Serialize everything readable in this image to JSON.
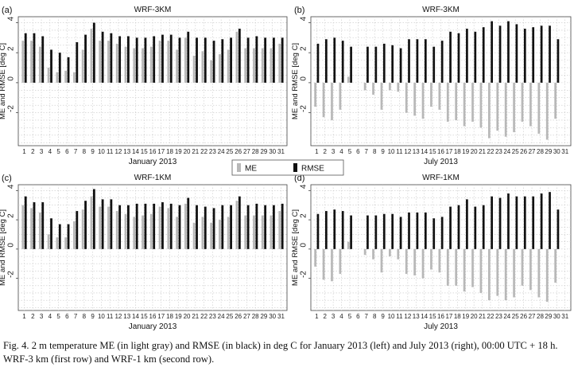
{
  "legend": {
    "me_label": "ME",
    "rmse_label": "RMSE",
    "me_color": "#b8b8b8",
    "rmse_color": "#111111"
  },
  "caption": "Fig. 4. 2 m temperature ME (in light gray) and RMSE (in black) in deg C for January 2013 (left) and July 2013 (right), 00:00 UTC + 18 h. WRF-3 km (first row) and WRF-1 km (second row).",
  "chart_data": [
    {
      "panel": "(a)",
      "type": "bar",
      "title": "WRF-3KM",
      "xlabel": "January 2013",
      "ylabel": "ME and RMSE [deg C]",
      "ylim": [
        -4.2,
        4.4
      ],
      "yticks": [
        -2,
        0,
        2,
        4
      ],
      "grid": true,
      "categories": [
        "1",
        "2",
        "3",
        "4",
        "5",
        "6",
        "7",
        "8",
        "9",
        "10",
        "11",
        "12",
        "13",
        "14",
        "15",
        "16",
        "17",
        "18",
        "19",
        "20",
        "21",
        "22",
        "23",
        "24",
        "25",
        "26",
        "27",
        "28",
        "29",
        "30",
        "31"
      ],
      "series": [
        {
          "name": "ME",
          "values": [
            2.8,
            2.8,
            2.4,
            1.0,
            0.7,
            0.8,
            0.7,
            2.2,
            3.6,
            2.8,
            2.8,
            2.6,
            2.4,
            2.3,
            2.3,
            2.4,
            2.8,
            2.8,
            2.2,
            3.0,
            1.8,
            2.1,
            1.5,
            1.9,
            2.2,
            3.4,
            2.3,
            2.3,
            2.3,
            2.3,
            2.6
          ]
        },
        {
          "name": "RMSE",
          "values": [
            3.3,
            3.3,
            3.1,
            2.2,
            2.0,
            1.7,
            2.7,
            3.2,
            4.0,
            3.4,
            3.3,
            3.1,
            3.1,
            3.0,
            3.0,
            3.1,
            3.2,
            3.2,
            3.0,
            3.4,
            3.0,
            3.0,
            2.8,
            2.9,
            3.0,
            3.6,
            3.0,
            3.1,
            3.0,
            3.0,
            3.0
          ]
        }
      ]
    },
    {
      "panel": "(b)",
      "type": "bar",
      "title": "WRF-3KM",
      "xlabel": "July 2013",
      "ylabel": "ME and RMSE [deg C]",
      "ylim": [
        -4.2,
        4.4
      ],
      "yticks": [
        -2,
        0,
        2,
        4
      ],
      "grid": true,
      "categories": [
        "1",
        "2",
        "3",
        "4",
        "5",
        "6",
        "7",
        "8",
        "9",
        "10",
        "11",
        "12",
        "13",
        "14",
        "15",
        "16",
        "17",
        "18",
        "19",
        "20",
        "21",
        "22",
        "23",
        "24",
        "25",
        "26",
        "27",
        "28",
        "29",
        "30",
        "31"
      ],
      "series": [
        {
          "name": "ME",
          "values": [
            -1.6,
            -2.3,
            -2.5,
            -1.8,
            0.4,
            null,
            -0.5,
            -0.8,
            -1.8,
            -0.5,
            -0.6,
            -2.0,
            -2.2,
            -2.4,
            -1.6,
            -1.8,
            -2.6,
            -2.5,
            -2.9,
            -2.6,
            -3.0,
            -3.7,
            -3.2,
            -3.6,
            -3.3,
            -2.6,
            -2.9,
            -3.4,
            -3.8,
            -2.4,
            null
          ]
        },
        {
          "name": "RMSE",
          "values": [
            2.6,
            2.9,
            3.0,
            2.8,
            2.4,
            null,
            2.4,
            2.4,
            2.6,
            2.5,
            2.3,
            2.9,
            2.9,
            2.9,
            2.4,
            2.8,
            3.4,
            3.3,
            3.6,
            3.4,
            3.7,
            4.1,
            3.8,
            4.1,
            3.9,
            3.6,
            3.7,
            3.8,
            3.8,
            2.9,
            null
          ]
        }
      ]
    },
    {
      "panel": "(c)",
      "type": "bar",
      "title": "WRF-1KM",
      "xlabel": "January 2013",
      "ylabel": "ME and RMSE [deg C]",
      "ylim": [
        -4.2,
        4.4
      ],
      "yticks": [
        -2,
        0,
        2,
        4
      ],
      "grid": true,
      "categories": [
        "1",
        "2",
        "3",
        "4",
        "5",
        "6",
        "7",
        "8",
        "9",
        "10",
        "11",
        "12",
        "13",
        "14",
        "15",
        "16",
        "17",
        "18",
        "19",
        "20",
        "21",
        "22",
        "23",
        "24",
        "25",
        "26",
        "27",
        "28",
        "29",
        "30",
        "31"
      ],
      "series": [
        {
          "name": "ME",
          "values": [
            3.0,
            2.8,
            2.5,
            1.0,
            0.8,
            0.8,
            1.9,
            2.7,
            3.6,
            2.9,
            2.9,
            2.6,
            2.4,
            2.2,
            2.3,
            2.4,
            2.9,
            2.8,
            2.2,
            3.1,
            1.8,
            2.2,
            1.8,
            2.0,
            2.2,
            3.3,
            2.3,
            2.3,
            2.3,
            2.3,
            2.6
          ]
        },
        {
          "name": "RMSE",
          "values": [
            3.6,
            3.2,
            3.2,
            2.1,
            1.7,
            1.7,
            2.6,
            3.3,
            4.1,
            3.4,
            3.4,
            3.0,
            3.0,
            3.1,
            3.1,
            3.1,
            3.2,
            3.1,
            3.0,
            3.5,
            3.0,
            2.9,
            2.8,
            3.0,
            3.0,
            3.6,
            3.0,
            3.1,
            3.0,
            3.0,
            3.1
          ]
        }
      ]
    },
    {
      "panel": "(d)",
      "type": "bar",
      "title": "WRF-1KM",
      "xlabel": "July 2013",
      "ylabel": "ME and RMSE [deg C]",
      "ylim": [
        -4.2,
        4.4
      ],
      "yticks": [
        -2,
        0,
        2,
        4
      ],
      "grid": true,
      "categories": [
        "1",
        "2",
        "3",
        "4",
        "5",
        "6",
        "7",
        "8",
        "9",
        "10",
        "11",
        "12",
        "13",
        "14",
        "15",
        "16",
        "17",
        "18",
        "19",
        "20",
        "21",
        "22",
        "23",
        "24",
        "25",
        "26",
        "27",
        "28",
        "29",
        "30",
        "31"
      ],
      "series": [
        {
          "name": "ME",
          "values": [
            -1.2,
            -2.1,
            -2.2,
            -1.7,
            0.5,
            null,
            -0.4,
            -0.7,
            -1.6,
            -0.5,
            -0.7,
            -1.7,
            -1.8,
            -2.0,
            -1.4,
            -1.6,
            -2.5,
            -2.5,
            -2.9,
            -2.6,
            -3.0,
            -3.5,
            -3.2,
            -3.5,
            -3.3,
            -2.5,
            -2.8,
            -3.3,
            -3.6,
            -2.3,
            null
          ]
        },
        {
          "name": "RMSE",
          "values": [
            2.4,
            2.6,
            2.7,
            2.6,
            2.3,
            null,
            2.3,
            2.3,
            2.4,
            2.4,
            2.2,
            2.5,
            2.5,
            2.5,
            2.1,
            2.2,
            2.9,
            3.0,
            3.4,
            2.9,
            3.0,
            3.6,
            3.5,
            3.8,
            3.6,
            3.6,
            3.6,
            3.8,
            3.9,
            2.7,
            null
          ]
        }
      ]
    }
  ]
}
